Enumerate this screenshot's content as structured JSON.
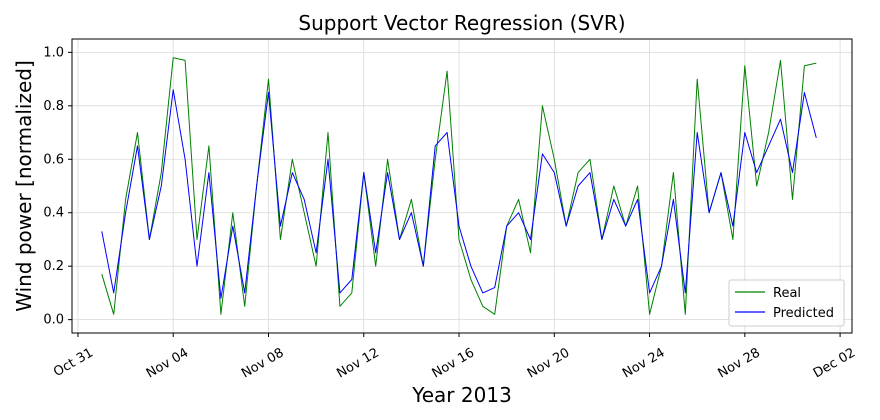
{
  "chart_data": {
    "type": "line",
    "title": "Support Vector Regression (SVR)",
    "xlabel": "Year 2013",
    "ylabel": "Wind power [normalized]",
    "x_ticks": [
      "Oct 31",
      "Nov 04",
      "Nov 08",
      "Nov 12",
      "Nov 16",
      "Nov 20",
      "Nov 24",
      "Nov 28",
      "Dec 02"
    ],
    "y_ticks": [
      "0.0",
      "0.2",
      "0.4",
      "0.6",
      "0.8",
      "1.0"
    ],
    "xlim": [
      "2013-10-30T18:00",
      "2013-12-02T12:00"
    ],
    "ylim": [
      -0.05,
      1.05
    ],
    "grid": true,
    "legend_position": "lower-right",
    "x": [
      "2013-11-01T00:00",
      "2013-11-01T12:00",
      "2013-11-02T00:00",
      "2013-11-02T12:00",
      "2013-11-03T00:00",
      "2013-11-03T12:00",
      "2013-11-04T00:00",
      "2013-11-04T12:00",
      "2013-11-05T00:00",
      "2013-11-05T12:00",
      "2013-11-06T00:00",
      "2013-11-06T12:00",
      "2013-11-07T00:00",
      "2013-11-07T12:00",
      "2013-11-08T00:00",
      "2013-11-08T12:00",
      "2013-11-09T00:00",
      "2013-11-09T12:00",
      "2013-11-10T00:00",
      "2013-11-10T12:00",
      "2013-11-11T00:00",
      "2013-11-11T12:00",
      "2013-11-12T00:00",
      "2013-11-12T12:00",
      "2013-11-13T00:00",
      "2013-11-13T12:00",
      "2013-11-14T00:00",
      "2013-11-14T12:00",
      "2013-11-15T00:00",
      "2013-11-15T12:00",
      "2013-11-16T00:00",
      "2013-11-16T12:00",
      "2013-11-17T00:00",
      "2013-11-17T12:00",
      "2013-11-18T00:00",
      "2013-11-18T12:00",
      "2013-11-19T00:00",
      "2013-11-19T12:00",
      "2013-11-20T00:00",
      "2013-11-20T12:00",
      "2013-11-21T00:00",
      "2013-11-21T12:00",
      "2013-11-22T00:00",
      "2013-11-22T12:00",
      "2013-11-23T00:00",
      "2013-11-23T12:00",
      "2013-11-24T00:00",
      "2013-11-24T12:00",
      "2013-11-25T00:00",
      "2013-11-25T12:00",
      "2013-11-26T00:00",
      "2013-11-26T12:00",
      "2013-11-27T00:00",
      "2013-11-27T12:00",
      "2013-11-28T00:00",
      "2013-11-28T12:00",
      "2013-11-29T00:00",
      "2013-11-29T12:00",
      "2013-11-30T00:00",
      "2013-11-30T12:00",
      "2013-12-01T00:00"
    ],
    "series": [
      {
        "name": "Real",
        "color": "#008000",
        "values": [
          0.17,
          0.02,
          0.45,
          0.7,
          0.3,
          0.55,
          0.98,
          0.97,
          0.3,
          0.65,
          0.02,
          0.4,
          0.05,
          0.5,
          0.9,
          0.3,
          0.6,
          0.4,
          0.2,
          0.7,
          0.05,
          0.1,
          0.55,
          0.2,
          0.6,
          0.3,
          0.45,
          0.2,
          0.6,
          0.93,
          0.3,
          0.15,
          0.05,
          0.02,
          0.35,
          0.45,
          0.25,
          0.8,
          0.6,
          0.35,
          0.55,
          0.6,
          0.3,
          0.5,
          0.35,
          0.5,
          0.02,
          0.2,
          0.55,
          0.02,
          0.9,
          0.4,
          0.55,
          0.3,
          0.95,
          0.5,
          0.7,
          0.97,
          0.45,
          0.95,
          0.96
        ]
      },
      {
        "name": "Predicted",
        "color": "#0000ff",
        "values": [
          0.33,
          0.1,
          0.4,
          0.65,
          0.3,
          0.5,
          0.86,
          0.6,
          0.2,
          0.55,
          0.08,
          0.35,
          0.1,
          0.5,
          0.85,
          0.35,
          0.55,
          0.45,
          0.25,
          0.6,
          0.1,
          0.15,
          0.55,
          0.25,
          0.55,
          0.3,
          0.4,
          0.2,
          0.65,
          0.7,
          0.35,
          0.2,
          0.1,
          0.12,
          0.35,
          0.4,
          0.3,
          0.62,
          0.55,
          0.35,
          0.5,
          0.55,
          0.3,
          0.45,
          0.35,
          0.45,
          0.1,
          0.2,
          0.45,
          0.1,
          0.7,
          0.4,
          0.55,
          0.35,
          0.7,
          0.55,
          0.65,
          0.75,
          0.55,
          0.85,
          0.68
        ]
      }
    ]
  }
}
